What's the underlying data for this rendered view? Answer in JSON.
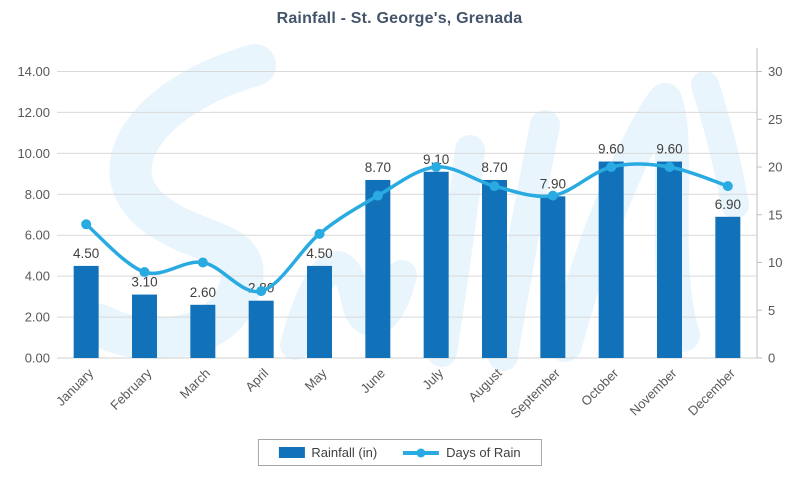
{
  "title": "Rainfall - St. George's, Grenada",
  "legend": {
    "items": [
      {
        "label": "Rainfall (in)",
        "swatch": "bar",
        "color": "#1172ba"
      },
      {
        "label": "Days of Rain",
        "swatch": "line",
        "color": "#29abe2"
      }
    ]
  },
  "colors": {
    "bar": "#1172ba",
    "line": "#29abe2",
    "grid": "#d9d9d9",
    "axis_line": "#bfbfbf",
    "title_text": "#44546a",
    "axis_text": "#595959",
    "data_label_text": "#404040",
    "watermark": "#e9f5fc"
  },
  "chart_data": {
    "type": "bar",
    "subtype": "bar-and-line-combo",
    "title": "Rainfall - St. George's, Grenada",
    "categories": [
      "January",
      "February",
      "March",
      "April",
      "May",
      "June",
      "July",
      "August",
      "September",
      "October",
      "November",
      "December"
    ],
    "series": [
      {
        "name": "Rainfall (in)",
        "type": "bar",
        "axis": "left",
        "values": [
          4.5,
          3.1,
          2.6,
          2.8,
          4.5,
          8.7,
          9.1,
          8.7,
          7.9,
          9.6,
          9.6,
          6.9
        ],
        "data_labels": [
          "4.50",
          "3.10",
          "2.60",
          "2.80",
          "4.50",
          "8.70",
          "9.10",
          "8.70",
          "7.90",
          "9.60",
          "9.60",
          "6.90"
        ]
      },
      {
        "name": "Days of Rain",
        "type": "line",
        "smooth": true,
        "axis": "right",
        "values": [
          14,
          9,
          10,
          7,
          13,
          17,
          20,
          18,
          17,
          20,
          20,
          18
        ]
      }
    ],
    "left_axis": {
      "min": 0,
      "max": 14,
      "step": 2,
      "tick_labels": [
        "0.00",
        "2.00",
        "4.00",
        "6.00",
        "8.00",
        "10.00",
        "12.00",
        "14.00"
      ]
    },
    "right_axis": {
      "min": 0,
      "max": 30,
      "step": 5,
      "tick_labels": [
        "0",
        "5",
        "10",
        "15",
        "20",
        "25",
        "30"
      ]
    },
    "grid": true,
    "legend_position": "bottom"
  }
}
